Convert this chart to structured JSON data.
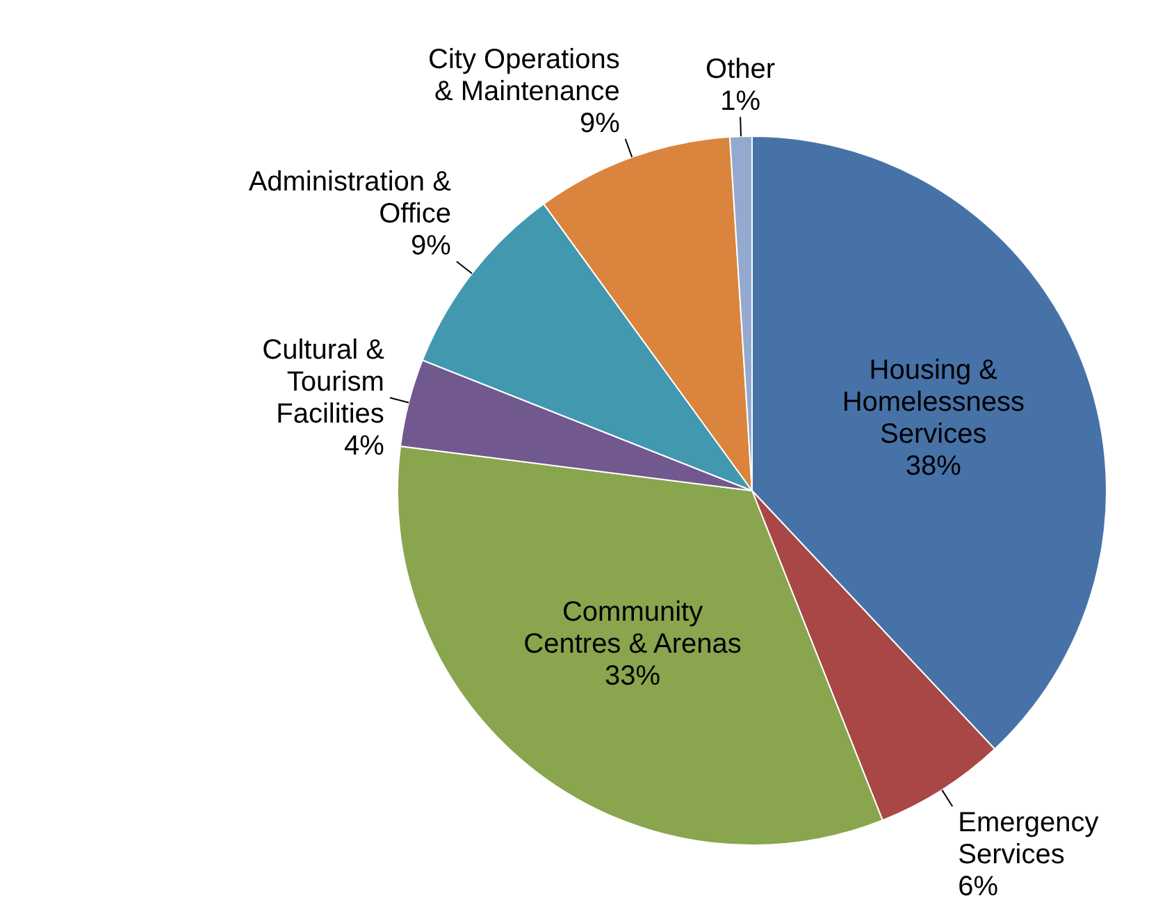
{
  "chart_data": {
    "type": "pie",
    "categories": [
      "Housing & Homelessness Services",
      "Emergency Services",
      "Community Centres & Arenas",
      "Cultural & Tourism Facilities",
      "Administration & Office",
      "City Operations & Maintenance",
      "Other"
    ],
    "values": [
      38,
      6,
      33,
      4,
      9,
      9,
      1
    ],
    "value_labels": [
      "38%",
      "6%",
      "33%",
      "4%",
      "9%",
      "9%",
      "1%"
    ],
    "colors": [
      "#4672a8",
      "#a84745",
      "#89a54e",
      "#71588f",
      "#4198af",
      "#db843d",
      "#93a9cf"
    ],
    "legend": false
  }
}
